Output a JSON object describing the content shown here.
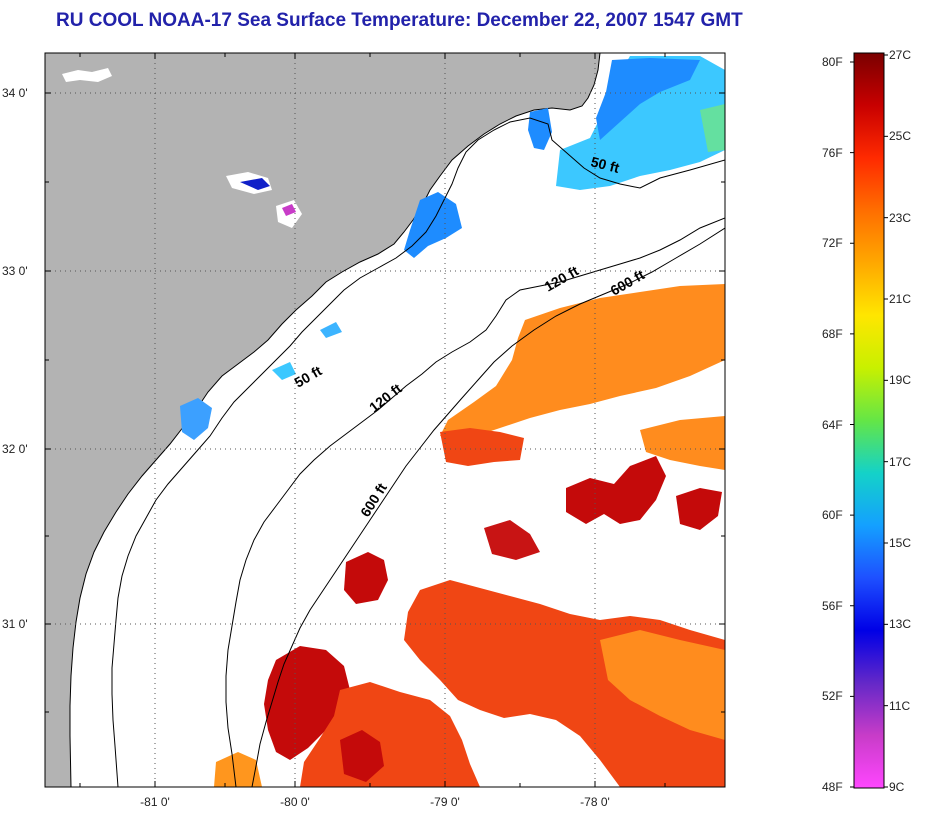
{
  "title": "RU COOL  NOAA-17  Sea Surface Temperature:  December 22, 2007 1547 GMT",
  "lat_labels": [
    "34 0'",
    "33 0'",
    "32 0'",
    "31 0'"
  ],
  "lon_labels": [
    "-81 0'",
    "-80 0'",
    "-79 0'",
    "-78 0'"
  ],
  "contours": [
    {
      "label": "50 ft"
    },
    {
      "label": "50 ft"
    },
    {
      "label": "120 ft"
    },
    {
      "label": "120 ft"
    },
    {
      "label": "600 ft"
    },
    {
      "label": "600 ft"
    }
  ],
  "colorbar": {
    "fahrenheit": [
      "80F",
      "76F",
      "72F",
      "68F",
      "64F",
      "60F",
      "56F",
      "52F",
      "48F"
    ],
    "celsius": [
      "27C",
      "25C",
      "23C",
      "21C",
      "19C",
      "17C",
      "15C",
      "13C",
      "11C",
      "9C"
    ],
    "gradient": [
      "#7a0000",
      "#c80000",
      "#ff2a00",
      "#ff6e00",
      "#ffa800",
      "#ffe600",
      "#c8f000",
      "#64e646",
      "#14d2c8",
      "#14a0ff",
      "#1e50ff",
      "#0000e6",
      "#6428c8",
      "#c83cc8",
      "#ff46ff"
    ]
  },
  "colors": {
    "land": "#b3b3b3",
    "ocean": "#ffffff",
    "title": "#2222aa",
    "sst_cold": "#1e8cff",
    "sst_cyan": "#3cc8ff",
    "sst_orange": "#ff8c1e",
    "sst_red_orange": "#f04614",
    "sst_dark_red": "#c40a0a"
  }
}
